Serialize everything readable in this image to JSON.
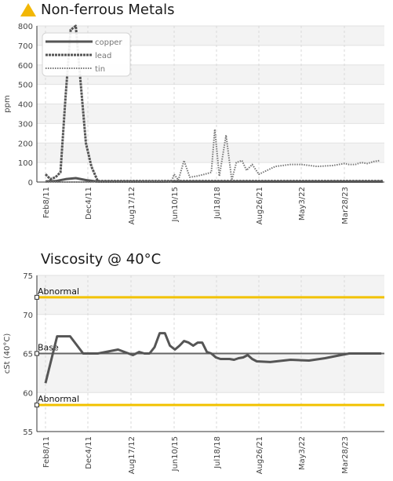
{
  "metals": {
    "title": "Non-ferrous Metals",
    "icon": "warning-triangle-icon",
    "icon_color": "#f2b705"
  },
  "viscosity": {
    "title": "Viscosity @ 40°C"
  },
  "chart_data": [
    {
      "type": "line",
      "title": "Non-ferrous Metals",
      "xlabel": "",
      "ylabel": "ppm",
      "ylim": [
        0,
        800
      ],
      "yticks": [
        0,
        100,
        200,
        300,
        400,
        500,
        600,
        700,
        800
      ],
      "xlim": [
        "2011-02-08",
        "2025-06-01"
      ],
      "xticks": [
        "Feb8/11",
        "Dec4/11",
        "Aug17/12",
        "Jun10/15",
        "Jul18/18",
        "Aug26/21",
        "May3/22",
        "Mar28/23"
      ],
      "grid": true,
      "legend": "top-left",
      "series": [
        {
          "name": "copper",
          "style": "solid",
          "color": "#555555",
          "x": [
            "2011-02-08",
            "2011-04-20",
            "2011-07-01",
            "2011-09-10",
            "2011-11-20",
            "2012-02-01",
            "2025-05-01"
          ],
          "values": [
            3,
            5,
            15,
            20,
            10,
            2,
            2
          ]
        },
        {
          "name": "lead",
          "style": "dashed",
          "color": "#555555",
          "x": [
            "2011-02-08",
            "2011-03-15",
            "2011-04-20",
            "2011-05-25",
            "2011-07-01",
            "2011-08-05",
            "2011-09-10",
            "2011-10-15",
            "2011-11-20",
            "2011-12-25",
            "2012-02-01",
            "2025-05-01"
          ],
          "values": [
            40,
            15,
            25,
            50,
            450,
            780,
            800,
            500,
            200,
            80,
            5,
            5
          ]
        },
        {
          "name": "tin",
          "style": "dotted",
          "color": "#777777",
          "x": [
            "2011-02-08",
            "2012-03-01",
            "2013-06-01",
            "2014-09-01",
            "2015-04-01",
            "2015-06-10",
            "2015-10-01",
            "2016-03-01",
            "2016-08-01",
            "2017-02-01",
            "2017-09-01",
            "2018-03-01",
            "2018-06-01",
            "2018-10-01",
            "2019-04-01",
            "2019-09-01",
            "2020-01-01",
            "2020-06-01",
            "2020-10-01",
            "2021-03-01",
            "2021-08-26",
            "2021-12-01",
            "2022-03-01",
            "2022-05-03",
            "2022-09-01",
            "2023-01-01",
            "2023-03-28",
            "2023-07-01",
            "2023-11-01",
            "2024-03-01",
            "2024-07-01",
            "2024-11-01",
            "2025-03-01"
          ],
          "values": [
            0,
            0,
            2,
            5,
            0,
            40,
            10,
            110,
            25,
            30,
            40,
            50,
            270,
            30,
            240,
            10,
            100,
            110,
            60,
            90,
            40,
            80,
            90,
            90,
            80,
            85,
            95,
            90,
            90,
            100,
            95,
            105,
            110
          ]
        }
      ]
    },
    {
      "type": "line",
      "title": "Viscosity @ 40°C",
      "xlabel": "",
      "ylabel": "cSt (40°C)",
      "ylim": [
        55,
        75
      ],
      "yticks": [
        55,
        60,
        65,
        70,
        75
      ],
      "xlim": [
        "2011-02-08",
        "2025-06-01"
      ],
      "xticks": [
        "Feb8/11",
        "Dec4/11",
        "Aug17/12",
        "Jun10/15",
        "Jul18/18",
        "Aug26/21",
        "May3/22",
        "Mar28/23"
      ],
      "grid": true,
      "series": [
        {
          "name": "",
          "style": "solid",
          "color": "#555555",
          "x": [
            "2011-02-08",
            "2011-05-01",
            "2011-08-01",
            "2011-11-01",
            "2012-02-01",
            "2012-06-01",
            "2012-10-01",
            "2013-03-01",
            "2013-07-01",
            "2013-11-01",
            "2014-03-01",
            "2014-07-01",
            "2014-11-01",
            "2015-03-01",
            "2015-07-01",
            "2015-11-01",
            "2016-03-01",
            "2016-07-01",
            "2016-11-01",
            "2017-03-01",
            "2017-07-01",
            "2017-11-01",
            "2018-03-01",
            "2018-07-01",
            "2018-11-01",
            "2019-03-01",
            "2019-07-01",
            "2019-11-01",
            "2020-03-01",
            "2020-07-01",
            "2020-11-01",
            "2021-03-01",
            "2021-07-01",
            "2021-11-01",
            "2022-03-01",
            "2022-07-01",
            "2022-11-01",
            "2023-03-01",
            "2023-07-01",
            "2023-11-01",
            "2024-03-01",
            "2024-07-01",
            "2024-11-01",
            "2025-04-01"
          ],
          "values": [
            61.2,
            67.2,
            67.2,
            65,
            65,
            65.5,
            64.8,
            65.2,
            65,
            65,
            65.8,
            67.6,
            67.6,
            66,
            65.5,
            66,
            66.6,
            66.4,
            66,
            66.4,
            66.4,
            65.2,
            65,
            64.5,
            64.3,
            64.3,
            64.3,
            64.2,
            64.4,
            64.5,
            64.8,
            64.3,
            64,
            63.9,
            64.2,
            64.1,
            64.4,
            64.8,
            65,
            65,
            65,
            65,
            65,
            65
          ]
        }
      ],
      "reference_lines": [
        {
          "label": "Abnormal",
          "value": 72.2,
          "color": "#f2c200"
        },
        {
          "label": "Base",
          "value": 65,
          "color": "#666666"
        },
        {
          "label": "Abnormal",
          "value": 58.4,
          "color": "#f2c200"
        }
      ]
    }
  ]
}
